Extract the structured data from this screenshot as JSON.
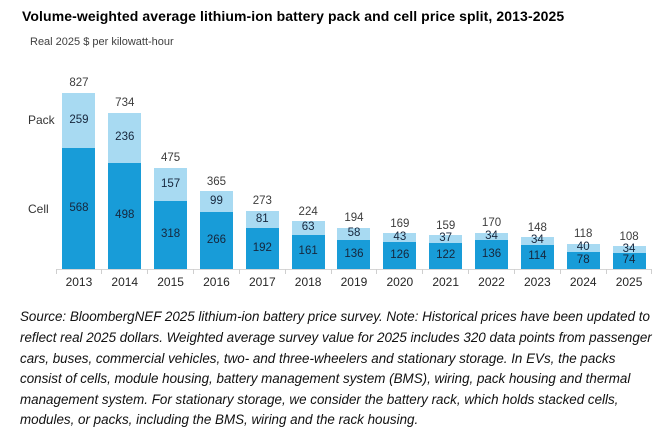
{
  "title": "Volume-weighted average lithium-ion battery pack and cell price split, 2013-2025",
  "subtitle": "Real 2025 $ per kilowatt-hour",
  "source_note": "Source: BloombergNEF 2025 lithium-ion battery price survey. Note: Historical prices have been updated to reflect real 2025 dollars. Weighted average survey value for 2025 includes 320 data points from passenger cars, buses, commercial vehicles, two- and three-wheelers and stationary storage.  In EVs, the packs consist of cells, module housing, battery management system (BMS), wiring, pack housing and thermal management system. For stationary storage, we consider the battery rack, which holds stacked cells, modules, or packs, including the BMS, wiring and the rack housing.",
  "side_labels": {
    "pack": "Pack",
    "cell": "Cell"
  },
  "chart_data": {
    "type": "bar",
    "stacked": true,
    "title": "Volume-weighted average lithium-ion battery pack and cell price split, 2013-2025",
    "ylabel": "Real 2025 $ per kilowatt-hour",
    "xlabel": "",
    "ylim": [
      0,
      900
    ],
    "grid": false,
    "y_axis_visible": false,
    "legend_position": "left-inline",
    "categories": [
      "2013",
      "2014",
      "2015",
      "2016",
      "2017",
      "2018",
      "2019",
      "2020",
      "2021",
      "2022",
      "2023",
      "2024",
      "2025"
    ],
    "series": [
      {
        "name": "Cell",
        "color": "#189cd8",
        "values": [
          568,
          498,
          318,
          266,
          192,
          161,
          136,
          126,
          122,
          136,
          114,
          78,
          74
        ]
      },
      {
        "name": "Pack",
        "color": "#a8daf2",
        "values": [
          259,
          236,
          157,
          99,
          81,
          63,
          58,
          43,
          37,
          34,
          34,
          40,
          34
        ]
      }
    ],
    "totals": [
      827,
      734,
      475,
      365,
      273,
      224,
      194,
      169,
      159,
      170,
      148,
      118,
      108
    ],
    "colors": {
      "cell_fill": "#189cd8",
      "pack_fill": "#a8daf2",
      "segment_label": "#16263c",
      "total_label": "#3d3d3d",
      "axis_line": "#d6d6d6"
    }
  }
}
